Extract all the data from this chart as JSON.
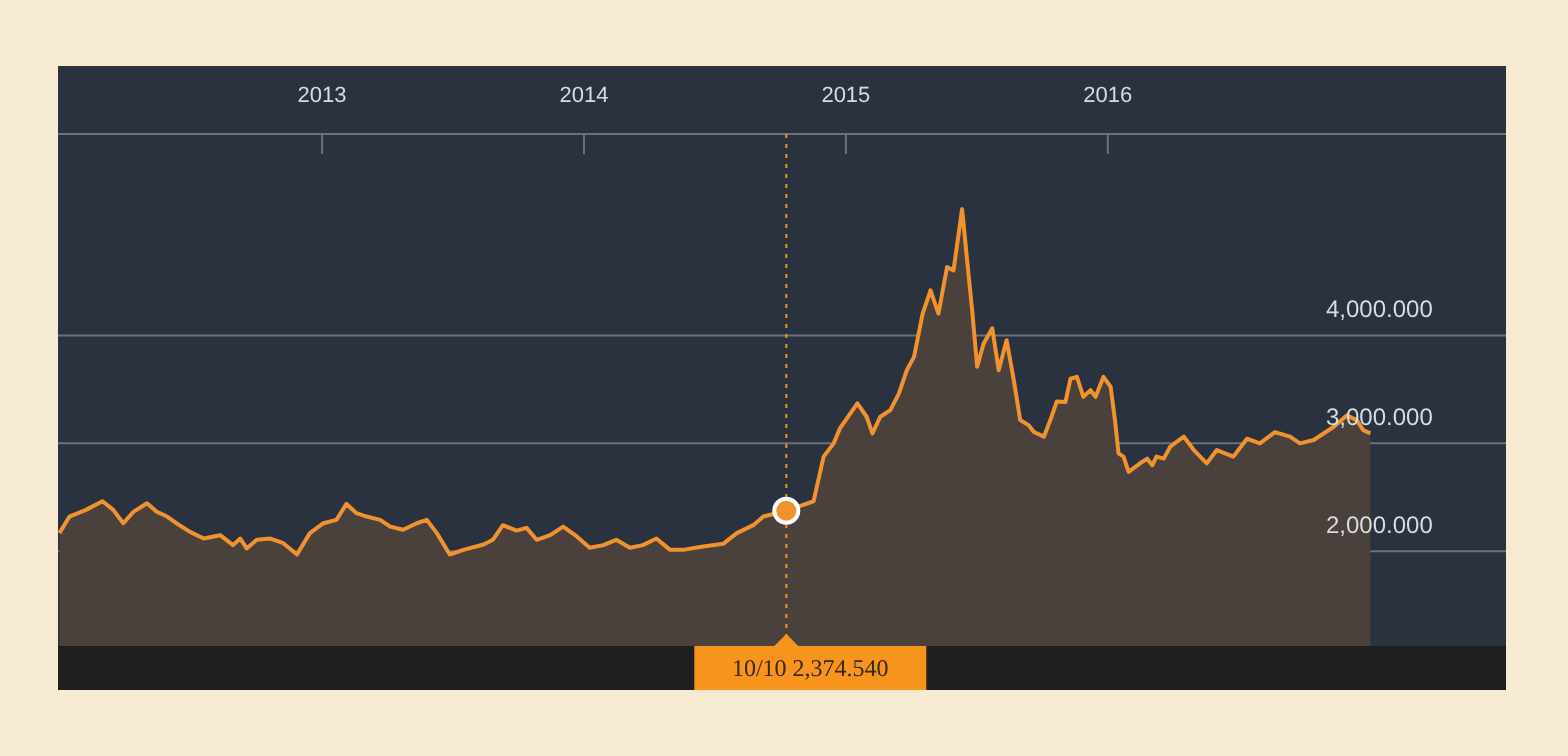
{
  "chart_data": {
    "type": "area",
    "x": [
      "2012-01-01",
      "2012-01-15",
      "2012-02-07",
      "2012-03-01",
      "2012-03-16",
      "2012-03-30",
      "2012-04-13",
      "2012-05-02",
      "2012-05-16",
      "2012-05-30",
      "2012-06-12",
      "2012-07-01",
      "2012-07-20",
      "2012-08-12",
      "2012-08-30",
      "2012-09-09",
      "2012-09-18",
      "2012-10-02",
      "2012-10-21",
      "2012-11-08",
      "2012-11-27",
      "2012-12-15",
      "2013-01-03",
      "2013-01-21",
      "2013-02-04",
      "2013-02-18",
      "2013-03-04",
      "2013-03-23",
      "2013-04-06",
      "2013-04-24",
      "2013-05-13",
      "2013-05-27",
      "2013-06-10",
      "2013-06-28",
      "2013-07-17",
      "2013-08-14",
      "2013-08-27",
      "2013-09-10",
      "2013-09-29",
      "2013-10-13",
      "2013-10-27",
      "2013-11-15",
      "2013-12-03",
      "2013-12-22",
      "2014-01-09",
      "2014-01-28",
      "2014-02-15",
      "2014-03-06",
      "2014-03-24",
      "2014-04-12",
      "2014-05-01",
      "2014-05-19",
      "2014-06-16",
      "2014-07-14",
      "2014-08-02",
      "2014-08-25",
      "2014-09-08",
      "2014-09-26",
      "2014-10-10",
      "2014-11-17",
      "2014-12-01",
      "2014-12-15",
      "2014-12-24",
      "2015-01-17",
      "2015-01-30",
      "2015-02-07",
      "2015-02-18",
      "2015-03-04",
      "2015-03-16",
      "2015-03-27",
      "2015-04-06",
      "2015-04-18",
      "2015-04-29",
      "2015-05-10",
      "2015-05-22",
      "2015-05-31",
      "2015-06-12",
      "2015-06-19",
      "2015-06-26",
      "2015-07-03",
      "2015-07-12",
      "2015-07-24",
      "2015-08-02",
      "2015-08-13",
      "2015-08-23",
      "2015-09-01",
      "2015-09-13",
      "2015-09-20",
      "2015-10-04",
      "2015-10-13",
      "2015-10-22",
      "2015-11-03",
      "2015-11-10",
      "2015-11-19",
      "2015-11-28",
      "2015-12-08",
      "2015-12-15",
      "2015-12-26",
      "2016-01-05",
      "2016-01-11",
      "2016-01-16",
      "2016-01-23",
      "2016-01-30",
      "2016-02-15",
      "2016-02-25",
      "2016-03-03",
      "2016-03-09",
      "2016-03-19",
      "2016-03-28",
      "2016-04-16",
      "2016-04-30",
      "2016-05-18",
      "2016-06-01",
      "2016-06-24",
      "2016-07-13",
      "2016-07-31",
      "2016-08-21",
      "2016-09-11",
      "2016-09-25",
      "2016-10-14",
      "2016-11-11",
      "2016-11-29",
      "2016-12-13",
      "2016-12-22",
      "2017-01-01"
    ],
    "series": [
      {
        "color": "#f0922e",
        "values": [
          2167,
          2321,
          2383,
          2463,
          2383,
          2259,
          2364,
          2444,
          2364,
          2321,
          2259,
          2179,
          2117,
          2148,
          2056,
          2117,
          2025,
          2105,
          2117,
          2074,
          1969,
          2167,
          2259,
          2290,
          2438,
          2352,
          2321,
          2290,
          2228,
          2198,
          2259,
          2290,
          2167,
          1969,
          2012,
          2062,
          2105,
          2241,
          2191,
          2216,
          2105,
          2148,
          2228,
          2136,
          2031,
          2056,
          2105,
          2031,
          2056,
          2117,
          2012,
          2012,
          2043,
          2068,
          2167,
          2241,
          2321,
          2352,
          2374.54,
          2463,
          2877,
          3000,
          3142,
          3370,
          3247,
          3093,
          3247,
          3309,
          3463,
          3679,
          3802,
          4204,
          4420,
          4204,
          4636,
          4605,
          5173,
          4698,
          4235,
          3710,
          3926,
          4068,
          3679,
          3957,
          3587,
          3216,
          3167,
          3105,
          3062,
          3216,
          3389,
          3383,
          3599,
          3617,
          3432,
          3494,
          3432,
          3617,
          3525,
          3216,
          2907,
          2877,
          2735,
          2815,
          2858,
          2797,
          2877,
          2858,
          2969,
          3062,
          2938,
          2815,
          2938,
          2877,
          3043,
          3000,
          3105,
          3062,
          3000,
          3031,
          3154,
          3259,
          3216,
          3123,
          3093
        ]
      }
    ],
    "xlim": [
      "2011-12-30",
      "2017-07-09"
    ],
    "xticks": [
      {
        "value": "2013-01-01",
        "label": "2013"
      },
      {
        "value": "2014-01-01",
        "label": "2014"
      },
      {
        "value": "2015-01-01",
        "label": "2015"
      },
      {
        "value": "2016-01-01",
        "label": "2016"
      }
    ],
    "ylim": [
      1120,
      5870
    ],
    "yticks": [
      {
        "value": 2000,
        "label": "2,000.000"
      },
      {
        "value": 3000,
        "label": "3,000.000"
      },
      {
        "value": 4000,
        "label": "4,000.000"
      }
    ],
    "grid": "y",
    "ref_lines": [
      {
        "axis": "x",
        "value": "2014-10-10",
        "color": "#f0922e",
        "line_style": "dotted"
      }
    ],
    "annotations": [
      "10/10 2,374.540"
    ]
  }
}
